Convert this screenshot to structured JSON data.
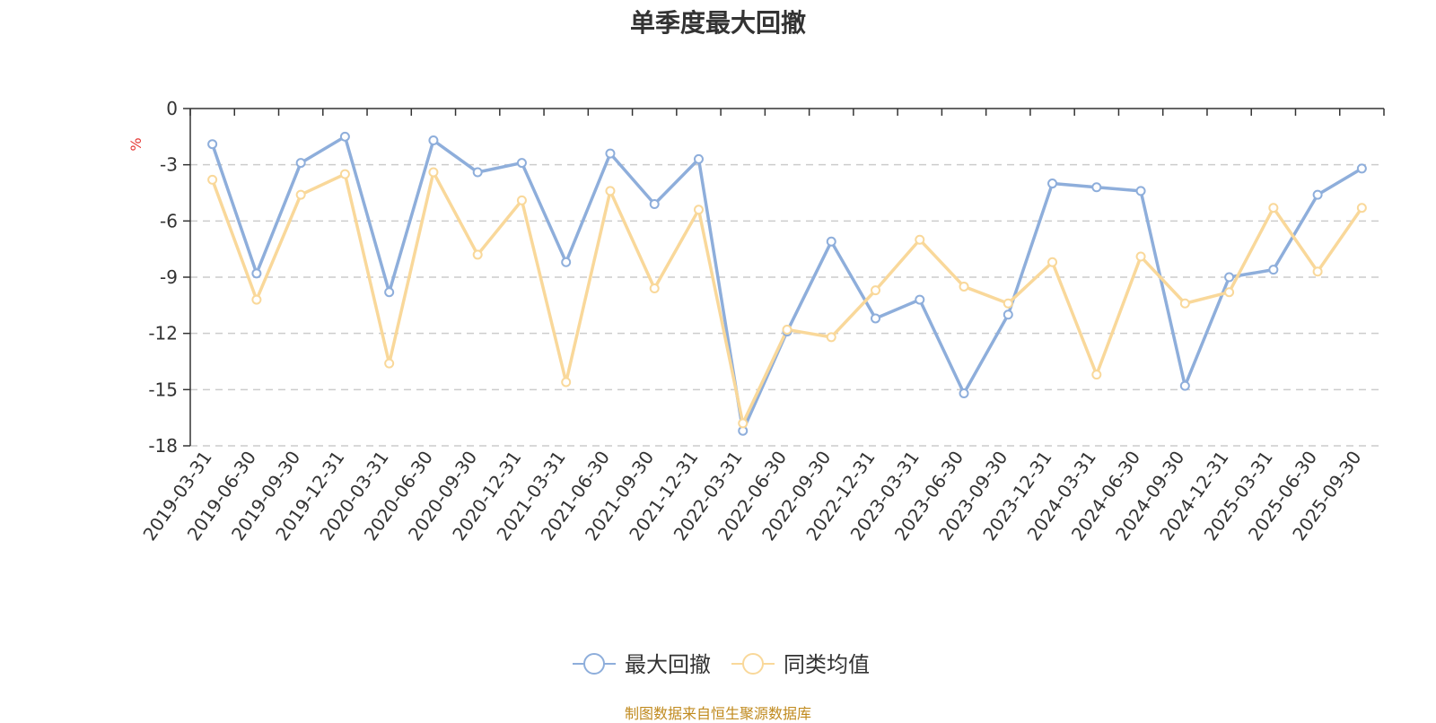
{
  "chart_data": {
    "type": "line",
    "title": "单季度最大回撤",
    "ylabel": "%",
    "ylim": [
      -18,
      0
    ],
    "yticks": [
      0,
      -3,
      -6,
      -9,
      -12,
      -15,
      -18
    ],
    "grid": true,
    "legend_position": "bottom-center",
    "categories": [
      "2019-03-31",
      "2019-06-30",
      "2019-09-30",
      "2019-12-31",
      "2020-03-31",
      "2020-06-30",
      "2020-09-30",
      "2020-12-31",
      "2021-03-31",
      "2021-06-30",
      "2021-09-30",
      "2021-12-31",
      "2022-03-31",
      "2022-06-30",
      "2022-09-30",
      "2022-12-31",
      "2023-03-31",
      "2023-06-30",
      "2023-09-30",
      "2023-12-31",
      "2024-03-31",
      "2024-06-30",
      "2024-09-30",
      "2024-12-31",
      "2025-03-31",
      "2025-06-30",
      "2025-09-30"
    ],
    "series": [
      {
        "name": "最大回撤",
        "color": "#8eaedb",
        "values": [
          -1.9,
          -8.8,
          -2.9,
          -1.5,
          -9.8,
          -1.7,
          -3.4,
          -2.9,
          -8.2,
          -2.4,
          -5.1,
          -2.7,
          -17.2,
          -11.9,
          -7.1,
          -11.2,
          -10.2,
          -15.2,
          -11.0,
          -4.0,
          -4.2,
          -4.4,
          -14.8,
          -9.0,
          -8.6,
          -4.6,
          -3.2
        ]
      },
      {
        "name": "同类均值",
        "color": "#f9d89a",
        "values": [
          -3.8,
          -10.2,
          -4.6,
          -3.5,
          -13.6,
          -3.4,
          -7.8,
          -4.9,
          -14.6,
          -4.4,
          -9.6,
          -5.4,
          -16.8,
          -11.8,
          -12.2,
          -9.7,
          -7.0,
          -9.5,
          -10.4,
          -8.2,
          -14.2,
          -7.9,
          -10.4,
          -9.8,
          -5.3,
          -8.7,
          -5.3
        ]
      }
    ]
  },
  "footer": {
    "source": "制图数据来自恒生聚源数据库"
  }
}
